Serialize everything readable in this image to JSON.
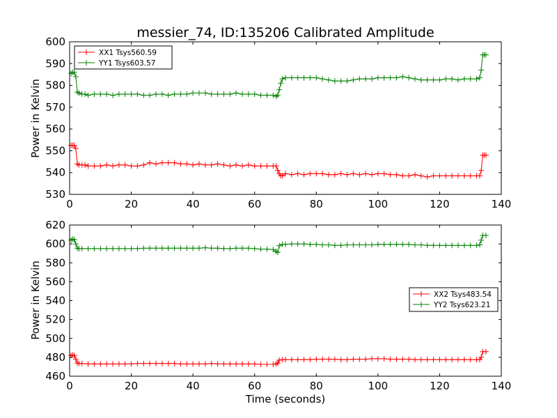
{
  "chart_data": [
    {
      "type": "line",
      "title": "messier_74, ID:135206 Calibrated Amplitude",
      "xlabel": "",
      "ylabel": "Power in Kelvin",
      "xlim": [
        0,
        140
      ],
      "ylim": [
        530,
        600
      ],
      "xticks": [
        0,
        20,
        40,
        60,
        80,
        100,
        120,
        140
      ],
      "yticks": [
        530,
        540,
        550,
        560,
        570,
        580,
        590,
        600
      ],
      "grid": false,
      "legend_position": "upper-left",
      "series": [
        {
          "name": "XX1 Tsys560.59",
          "color": "#ff0000",
          "marker": "plus",
          "x": [
            0.5,
            1,
            1.5,
            2,
            2.5,
            3,
            4,
            5,
            6,
            8,
            10,
            12,
            14,
            16,
            18,
            20,
            22,
            24,
            26,
            28,
            30,
            32,
            34,
            36,
            38,
            40,
            42,
            44,
            46,
            48,
            50,
            52,
            54,
            56,
            58,
            60,
            62,
            64,
            66,
            67,
            67.5,
            68,
            68.5,
            69,
            70,
            72,
            74,
            76,
            78,
            80,
            82,
            84,
            86,
            88,
            90,
            92,
            94,
            96,
            98,
            100,
            102,
            104,
            106,
            108,
            110,
            112,
            114,
            116,
            118,
            120,
            122,
            124,
            126,
            128,
            130,
            132,
            133,
            133.5,
            134,
            134.5,
            135
          ],
          "y": [
            552.5,
            552.5,
            552.5,
            551,
            544,
            543.5,
            543.5,
            543.5,
            543,
            543,
            543,
            543.5,
            543,
            543.5,
            543.5,
            543,
            543,
            543.5,
            544.5,
            544,
            544.5,
            544.5,
            544.5,
            544,
            544,
            543.5,
            544,
            543.5,
            543.5,
            544,
            543.5,
            543,
            543.5,
            543,
            543.5,
            543,
            543,
            543,
            543,
            543,
            541,
            539.5,
            538.5,
            538.5,
            539.5,
            539,
            539.5,
            539,
            539.5,
            539.5,
            539.5,
            539,
            539,
            539.5,
            539,
            539.5,
            539,
            539.5,
            539,
            539.5,
            539.5,
            539,
            539,
            538.5,
            538.5,
            539,
            538.5,
            538,
            538.5,
            538.5,
            538.5,
            538.5,
            538.5,
            538.5,
            538.5,
            538.5,
            538.5,
            541,
            548,
            548,
            548
          ]
        },
        {
          "name": "YY1 Tsys603.57",
          "color": "#008000",
          "marker": "plus",
          "x": [
            0.5,
            1,
            1.5,
            2,
            2.5,
            3,
            4,
            5,
            6,
            8,
            10,
            12,
            14,
            16,
            18,
            20,
            22,
            24,
            26,
            28,
            30,
            32,
            34,
            36,
            38,
            40,
            42,
            44,
            46,
            48,
            50,
            52,
            54,
            56,
            58,
            60,
            62,
            64,
            66,
            67,
            67.5,
            68,
            68.5,
            69,
            70,
            72,
            74,
            76,
            78,
            80,
            82,
            84,
            86,
            88,
            90,
            92,
            94,
            96,
            98,
            100,
            102,
            104,
            106,
            108,
            110,
            112,
            114,
            116,
            118,
            120,
            122,
            124,
            126,
            128,
            130,
            132,
            133,
            133.5,
            134,
            134.5,
            135
          ],
          "y": [
            585.5,
            586,
            586,
            584,
            577,
            576.5,
            576,
            576,
            575.5,
            576,
            576,
            576,
            575.5,
            576,
            576,
            576,
            576,
            575.5,
            575.5,
            576,
            576,
            575.5,
            576,
            576,
            576,
            576.5,
            576.5,
            576.5,
            576,
            576,
            576,
            576,
            576.5,
            576,
            576,
            576,
            575.5,
            575.5,
            575.5,
            575,
            575.5,
            578,
            581,
            583,
            583.5,
            583.5,
            583.5,
            583.5,
            583.5,
            583.5,
            583,
            582.5,
            582,
            582,
            582,
            582.5,
            583,
            583,
            583,
            583.5,
            583.5,
            583.5,
            583.5,
            584,
            583.5,
            583,
            582.5,
            582.5,
            582.5,
            582.5,
            583,
            583,
            582.5,
            583,
            583,
            583,
            583.5,
            587,
            594,
            594,
            594
          ]
        }
      ]
    },
    {
      "type": "line",
      "title": "",
      "xlabel": "Time (seconds)",
      "ylabel": "Power in Kelvin",
      "xlim": [
        0,
        140
      ],
      "ylim": [
        460,
        620
      ],
      "xticks": [
        0,
        20,
        40,
        60,
        80,
        100,
        120,
        140
      ],
      "yticks": [
        460,
        480,
        500,
        520,
        540,
        560,
        580,
        600,
        620
      ],
      "grid": false,
      "legend_position": "right",
      "series": [
        {
          "name": "XX2 Tsys483.54",
          "color": "#ff0000",
          "marker": "plus",
          "x": [
            0.5,
            1,
            1.5,
            2,
            2.5,
            3,
            4,
            6,
            8,
            10,
            12,
            14,
            16,
            18,
            20,
            22,
            24,
            26,
            28,
            30,
            32,
            34,
            36,
            38,
            40,
            42,
            44,
            46,
            48,
            50,
            52,
            54,
            56,
            58,
            60,
            62,
            64,
            66,
            67,
            67.5,
            68,
            69,
            70,
            72,
            74,
            76,
            78,
            80,
            82,
            84,
            86,
            88,
            90,
            92,
            94,
            96,
            98,
            100,
            102,
            104,
            106,
            108,
            110,
            112,
            114,
            116,
            118,
            120,
            122,
            124,
            126,
            128,
            130,
            132,
            133,
            133.5,
            134,
            135
          ],
          "y": [
            482,
            482.5,
            482,
            478,
            474,
            473.5,
            473.5,
            473,
            473,
            473,
            473,
            473,
            473,
            473,
            473,
            473.5,
            473.5,
            473.5,
            473.5,
            473.5,
            473.5,
            473.5,
            473,
            473,
            473,
            473,
            473,
            473.5,
            473,
            473,
            473,
            473,
            473,
            473,
            473,
            472.5,
            472.5,
            472.5,
            473,
            474,
            477,
            477.5,
            477.5,
            477.5,
            477.5,
            477.5,
            477.5,
            478,
            478,
            478,
            478,
            477.5,
            477.5,
            478,
            478,
            478,
            478.5,
            478.5,
            478.5,
            478,
            478,
            478,
            478,
            477.5,
            477.5,
            477.5,
            477.5,
            477.5,
            477.5,
            477.5,
            477.5,
            477.5,
            477.5,
            477.5,
            477.5,
            480,
            486,
            486
          ]
        },
        {
          "name": "YY2 Tsys623.21",
          "color": "#008000",
          "marker": "plus",
          "x": [
            0.5,
            1,
            1.5,
            2,
            2.5,
            3,
            4,
            6,
            8,
            10,
            12,
            14,
            16,
            18,
            20,
            22,
            24,
            26,
            28,
            30,
            32,
            34,
            36,
            38,
            40,
            42,
            44,
            46,
            48,
            50,
            52,
            54,
            56,
            58,
            60,
            62,
            64,
            66,
            67,
            67.5,
            68,
            69,
            70,
            72,
            74,
            76,
            78,
            80,
            82,
            84,
            86,
            88,
            90,
            92,
            94,
            96,
            98,
            100,
            102,
            104,
            106,
            108,
            110,
            112,
            114,
            116,
            118,
            120,
            122,
            124,
            126,
            128,
            130,
            132,
            133,
            133.5,
            134,
            135
          ],
          "y": [
            604,
            605,
            604.5,
            600,
            595.5,
            595,
            595,
            595,
            595,
            595,
            595,
            595,
            595,
            595,
            595,
            595,
            595.5,
            595.5,
            595.5,
            595.5,
            595.5,
            595.5,
            595.5,
            595.5,
            595.5,
            595.5,
            596,
            595.5,
            595.5,
            595,
            595,
            595.5,
            595.5,
            595.5,
            595,
            594.5,
            594.5,
            594,
            592,
            591,
            598,
            599.5,
            599.5,
            600,
            600,
            600,
            599.5,
            599.5,
            599,
            599,
            598.5,
            598.5,
            599,
            599,
            599,
            599,
            599,
            599.5,
            599.5,
            599.5,
            599.5,
            599.5,
            599.5,
            599,
            599,
            598.5,
            598.5,
            598.5,
            598.5,
            598.5,
            598.5,
            598.5,
            598.5,
            598.5,
            599,
            604,
            609,
            609
          ]
        }
      ]
    }
  ]
}
